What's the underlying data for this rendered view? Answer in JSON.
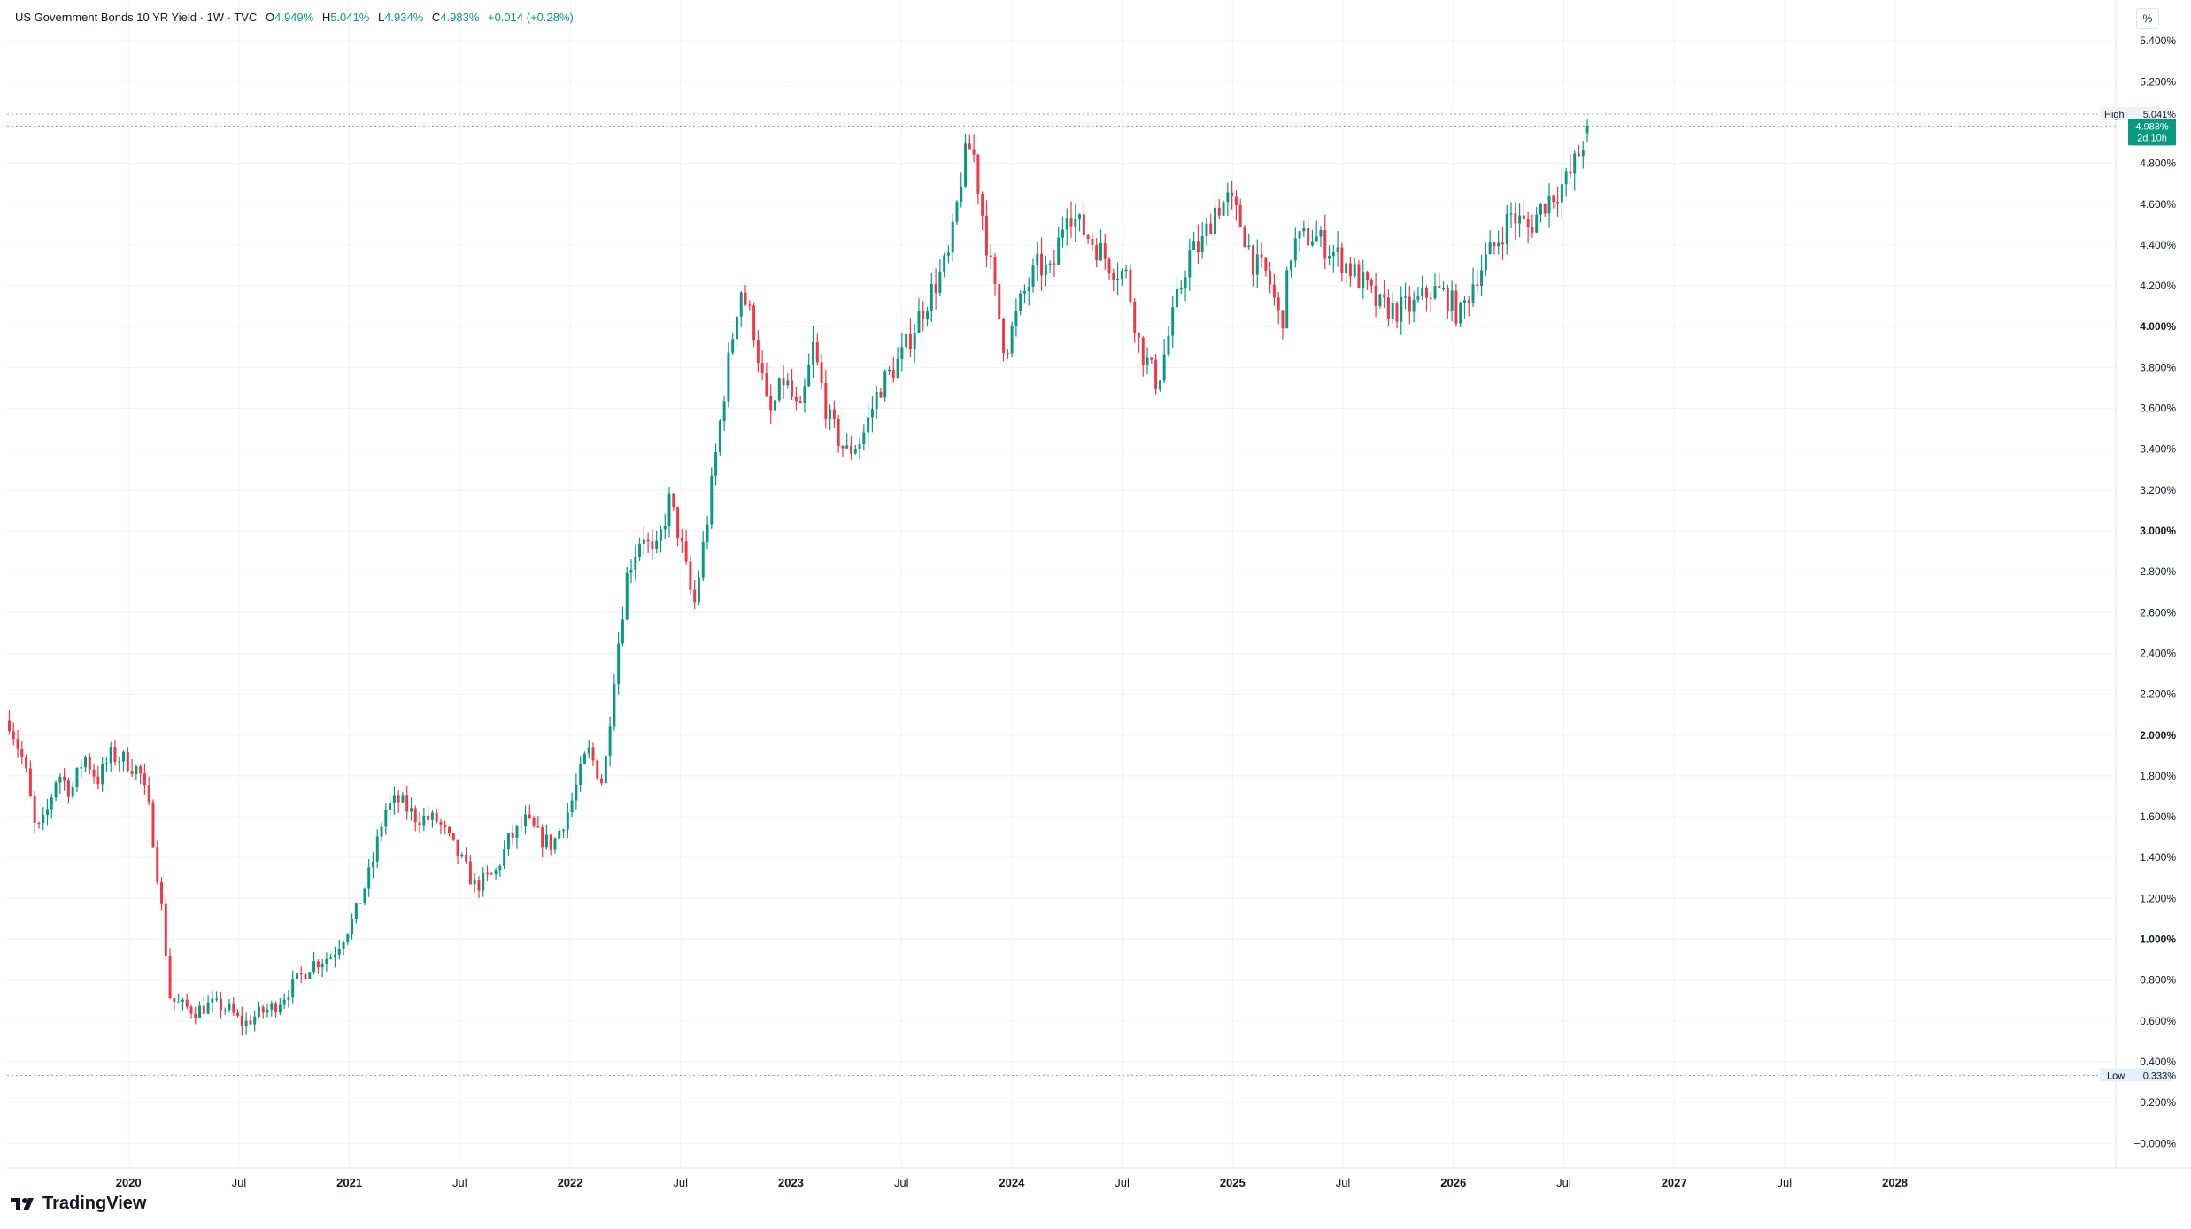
{
  "legend": {
    "symbol": "US Government Bonds 10 YR Yield · 1W · TVC",
    "open_label": "O",
    "open": "4.949%",
    "high_label": "H",
    "high": "5.041%",
    "low_label": "L",
    "low": "4.934%",
    "close_label": "C",
    "close": "4.983%",
    "change": "+0.014 (+0.28%)"
  },
  "unit": "%",
  "brand": "TradingView",
  "colors": {
    "up": "#089981",
    "down": "#f23645",
    "grid": "#f0f3fa",
    "axis_text": "#131722",
    "price_tag": "#089981"
  },
  "markers": {
    "high": {
      "label": "High",
      "value": 5.041,
      "text": "5.041%"
    },
    "low": {
      "label": "Low",
      "value": 0.333,
      "text": "0.333%"
    },
    "last": {
      "value": 4.983,
      "text": "4.983%",
      "countdown": "2d 10h"
    }
  },
  "chart_data": {
    "type": "candlestick",
    "title": "US Government Bonds 10 YR Yield · 1W · TVC",
    "xlabel": "",
    "ylabel": "",
    "ylim": [
      -0.12,
      5.6
    ],
    "xlim": [
      2019.45,
      2029.0
    ],
    "grid": true,
    "y_ticks": [
      -0.0,
      0.2,
      0.4,
      0.6,
      0.8,
      1.0,
      1.2,
      1.4,
      1.6,
      1.8,
      2.0,
      2.2,
      2.4,
      2.6,
      2.8,
      3.0,
      3.2,
      3.4,
      3.6,
      3.8,
      4.0,
      4.2,
      4.4,
      4.6,
      4.8,
      5.0,
      5.2,
      5.4
    ],
    "y_tick_labels": [
      "−0.000%",
      "0.200%",
      "0.400%",
      "0.600%",
      "0.800%",
      "1.000%",
      "1.200%",
      "1.400%",
      "1.600%",
      "1.800%",
      "2.000%",
      "2.200%",
      "2.400%",
      "2.600%",
      "2.800%",
      "3.000%",
      "3.200%",
      "3.400%",
      "3.600%",
      "3.800%",
      "4.000%",
      "4.200%",
      "4.400%",
      "4.600%",
      "4.800%",
      "5.000%",
      "5.200%",
      "5.400%"
    ],
    "y_bold_ticks": [
      "1.000%",
      "2.000%",
      "3.000%",
      "4.000%"
    ],
    "x_ticks": [
      {
        "t": 2020.0,
        "label": "2020",
        "bold": true
      },
      {
        "t": 2020.5,
        "label": "Jul",
        "bold": false
      },
      {
        "t": 2021.0,
        "label": "2021",
        "bold": true
      },
      {
        "t": 2021.5,
        "label": "Jul",
        "bold": false
      },
      {
        "t": 2022.0,
        "label": "2022",
        "bold": true
      },
      {
        "t": 2022.5,
        "label": "Jul",
        "bold": false
      },
      {
        "t": 2023.0,
        "label": "2023",
        "bold": true
      },
      {
        "t": 2023.5,
        "label": "Jul",
        "bold": false
      },
      {
        "t": 2024.0,
        "label": "2024",
        "bold": true
      },
      {
        "t": 2024.5,
        "label": "Jul",
        "bold": false
      },
      {
        "t": 2025.0,
        "label": "2025",
        "bold": true
      },
      {
        "t": 2025.5,
        "label": "Jul",
        "bold": false
      },
      {
        "t": 2026.0,
        "label": "2026",
        "bold": true
      },
      {
        "t": 2026.5,
        "label": "Jul",
        "bold": false
      },
      {
        "t": 2027.0,
        "label": "2027",
        "bold": true
      },
      {
        "t": 2027.5,
        "label": "Jul",
        "bold": false
      },
      {
        "t": 2028.0,
        "label": "2028",
        "bold": true
      }
    ],
    "first_week": 2019.46,
    "week_step": 0.01916,
    "series": [
      {
        "anchors": [
          [
            2019.46,
            2.07
          ],
          [
            2019.53,
            1.85
          ],
          [
            2019.58,
            1.52
          ],
          [
            2019.62,
            1.58
          ],
          [
            2019.68,
            1.82
          ],
          [
            2019.74,
            1.72
          ],
          [
            2019.8,
            1.9
          ],
          [
            2019.86,
            1.78
          ],
          [
            2019.92,
            1.9
          ],
          [
            2019.98,
            1.88
          ],
          [
            2020.05,
            1.82
          ],
          [
            2020.1,
            1.6
          ],
          [
            2020.15,
            1.15
          ],
          [
            2020.19,
            0.7
          ],
          [
            2020.23,
            0.68
          ],
          [
            2020.3,
            0.65
          ],
          [
            2020.38,
            0.68
          ],
          [
            2020.45,
            0.66
          ],
          [
            2020.52,
            0.58
          ],
          [
            2020.58,
            0.63
          ],
          [
            2020.66,
            0.67
          ],
          [
            2020.75,
            0.78
          ],
          [
            2020.83,
            0.88
          ],
          [
            2020.92,
            0.92
          ],
          [
            2021.02,
            1.1
          ],
          [
            2021.1,
            1.35
          ],
          [
            2021.16,
            1.63
          ],
          [
            2021.22,
            1.68
          ],
          [
            2021.3,
            1.6
          ],
          [
            2021.4,
            1.58
          ],
          [
            2021.5,
            1.4
          ],
          [
            2021.57,
            1.26
          ],
          [
            2021.66,
            1.32
          ],
          [
            2021.72,
            1.48
          ],
          [
            2021.8,
            1.58
          ],
          [
            2021.86,
            1.5
          ],
          [
            2021.92,
            1.46
          ],
          [
            2022.0,
            1.65
          ],
          [
            2022.08,
            1.93
          ],
          [
            2022.15,
            1.76
          ],
          [
            2022.2,
            2.3
          ],
          [
            2022.26,
            2.8
          ],
          [
            2022.33,
            3.0
          ],
          [
            2022.38,
            2.85
          ],
          [
            2022.45,
            3.15
          ],
          [
            2022.5,
            2.95
          ],
          [
            2022.56,
            2.62
          ],
          [
            2022.62,
            3.05
          ],
          [
            2022.7,
            3.7
          ],
          [
            2022.77,
            4.2
          ],
          [
            2022.83,
            4.0
          ],
          [
            2022.9,
            3.55
          ],
          [
            2022.97,
            3.75
          ],
          [
            2023.04,
            3.55
          ],
          [
            2023.1,
            3.9
          ],
          [
            2023.17,
            3.55
          ],
          [
            2023.25,
            3.38
          ],
          [
            2023.32,
            3.45
          ],
          [
            2023.4,
            3.7
          ],
          [
            2023.5,
            3.85
          ],
          [
            2023.58,
            4.05
          ],
          [
            2023.65,
            4.2
          ],
          [
            2023.72,
            4.35
          ],
          [
            2023.78,
            4.8
          ],
          [
            2023.82,
            4.9
          ],
          [
            2023.86,
            4.6
          ],
          [
            2023.91,
            4.25
          ],
          [
            2023.97,
            3.88
          ],
          [
            2024.05,
            4.15
          ],
          [
            2024.12,
            4.3
          ],
          [
            2024.18,
            4.25
          ],
          [
            2024.25,
            4.6
          ],
          [
            2024.3,
            4.5
          ],
          [
            2024.38,
            4.4
          ],
          [
            2024.45,
            4.3
          ],
          [
            2024.52,
            4.25
          ],
          [
            2024.58,
            3.9
          ],
          [
            2024.66,
            3.72
          ],
          [
            2024.72,
            4.0
          ],
          [
            2024.8,
            4.35
          ],
          [
            2024.86,
            4.4
          ],
          [
            2024.92,
            4.58
          ],
          [
            2024.98,
            4.62
          ],
          [
            2025.04,
            4.5
          ],
          [
            2025.1,
            4.3
          ],
          [
            2025.16,
            4.25
          ],
          [
            2025.22,
            4.0
          ],
          [
            2025.27,
            4.4
          ],
          [
            2025.36,
            4.45
          ],
          [
            2025.44,
            4.38
          ],
          [
            2025.52,
            4.3
          ],
          [
            2025.6,
            4.2
          ],
          [
            2025.66,
            4.1
          ],
          [
            2025.74,
            4.08
          ],
          [
            2025.82,
            4.1
          ],
          [
            2025.9,
            4.18
          ],
          [
            2025.97,
            4.15
          ],
          [
            2026.03,
            4.05
          ],
          [
            2026.1,
            4.25
          ],
          [
            2026.18,
            4.38
          ],
          [
            2026.26,
            4.55
          ],
          [
            2026.34,
            4.48
          ],
          [
            2026.42,
            4.62
          ],
          [
            2026.52,
            4.72
          ],
          [
            2026.58,
            4.88
          ],
          [
            2026.61,
            4.983
          ]
        ]
      }
    ]
  }
}
